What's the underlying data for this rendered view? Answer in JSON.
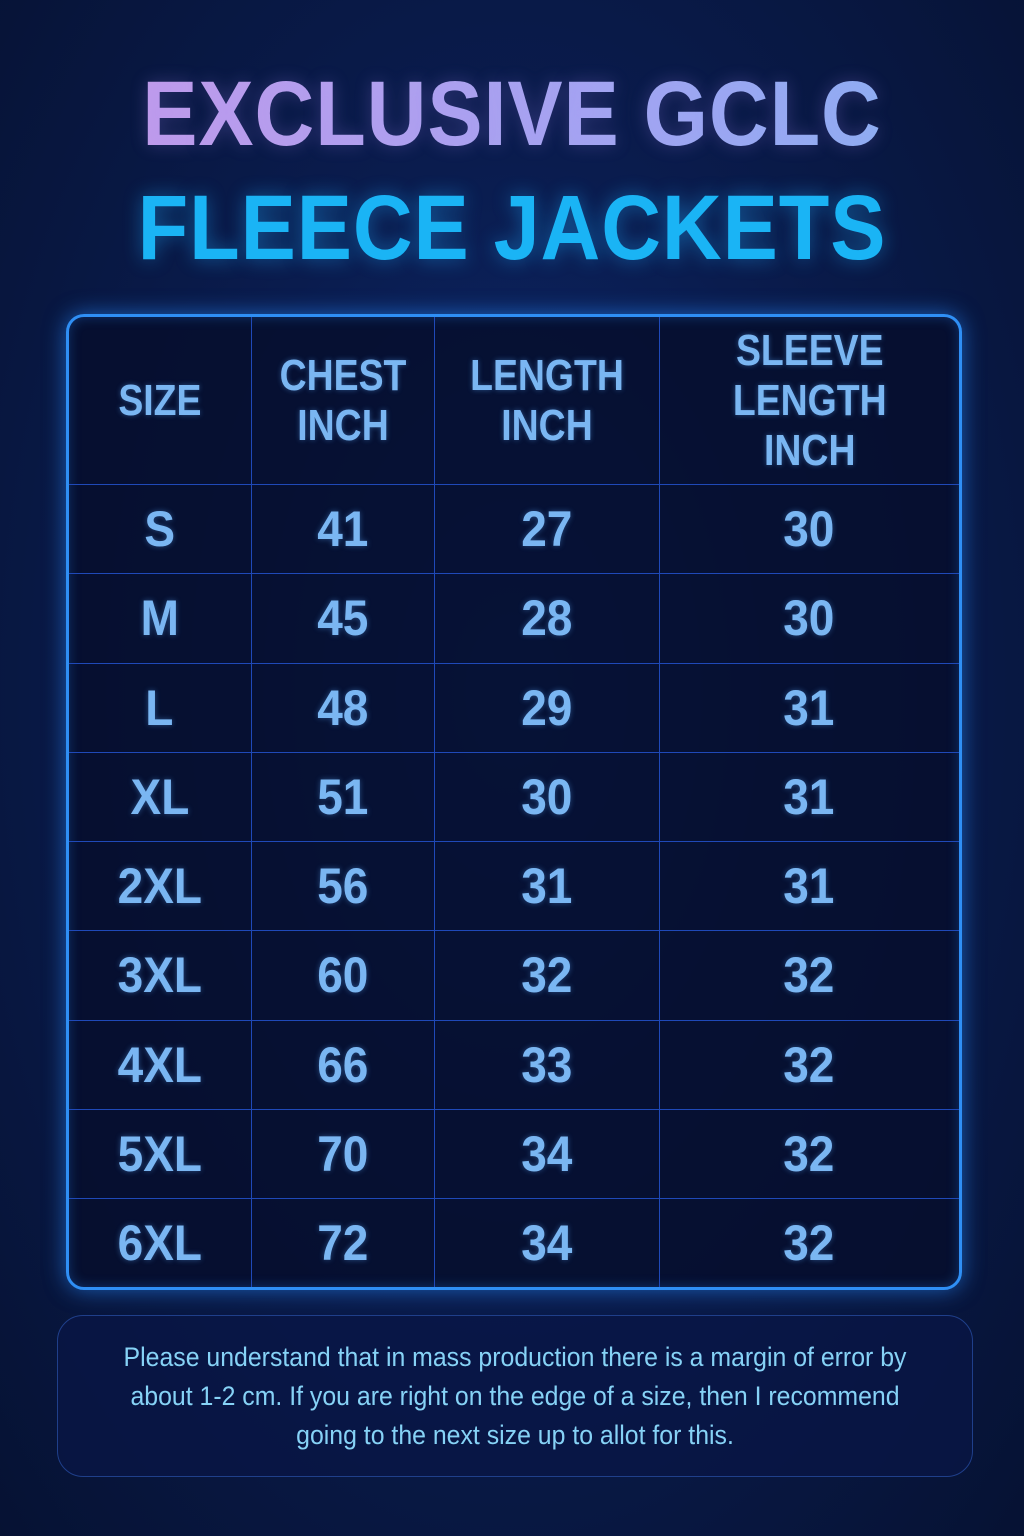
{
  "title": {
    "line1": "EXCLUSIVE GCLC",
    "line2": "FLEECE JACKETS"
  },
  "colors": {
    "title_line1": "#c79be8",
    "title_line2": "#1ab4f5",
    "table_border": "#2f8ff5",
    "cell_text": "#7ab6f2",
    "note_text": "#86d2f6"
  },
  "table": {
    "headers": [
      "SIZE",
      "CHEST INCH",
      "LENGTH INCH",
      "SLEEVE LENGTH INCH"
    ],
    "rows": [
      [
        "S",
        "41",
        "27",
        "30"
      ],
      [
        "M",
        "45",
        "28",
        "30"
      ],
      [
        "L",
        "48",
        "29",
        "31"
      ],
      [
        "XL",
        "51",
        "30",
        "31"
      ],
      [
        "2XL",
        "56",
        "31",
        "31"
      ],
      [
        "3XL",
        "60",
        "32",
        "32"
      ],
      [
        "4XL",
        "66",
        "33",
        "32"
      ],
      [
        "5XL",
        "70",
        "34",
        "32"
      ],
      [
        "6XL",
        "72",
        "34",
        "32"
      ]
    ]
  },
  "note": "Please understand that in mass production there is a margin of error by about 1-2 cm. If you are right on the edge of a size, then I recommend going to the next size up to allot for this."
}
